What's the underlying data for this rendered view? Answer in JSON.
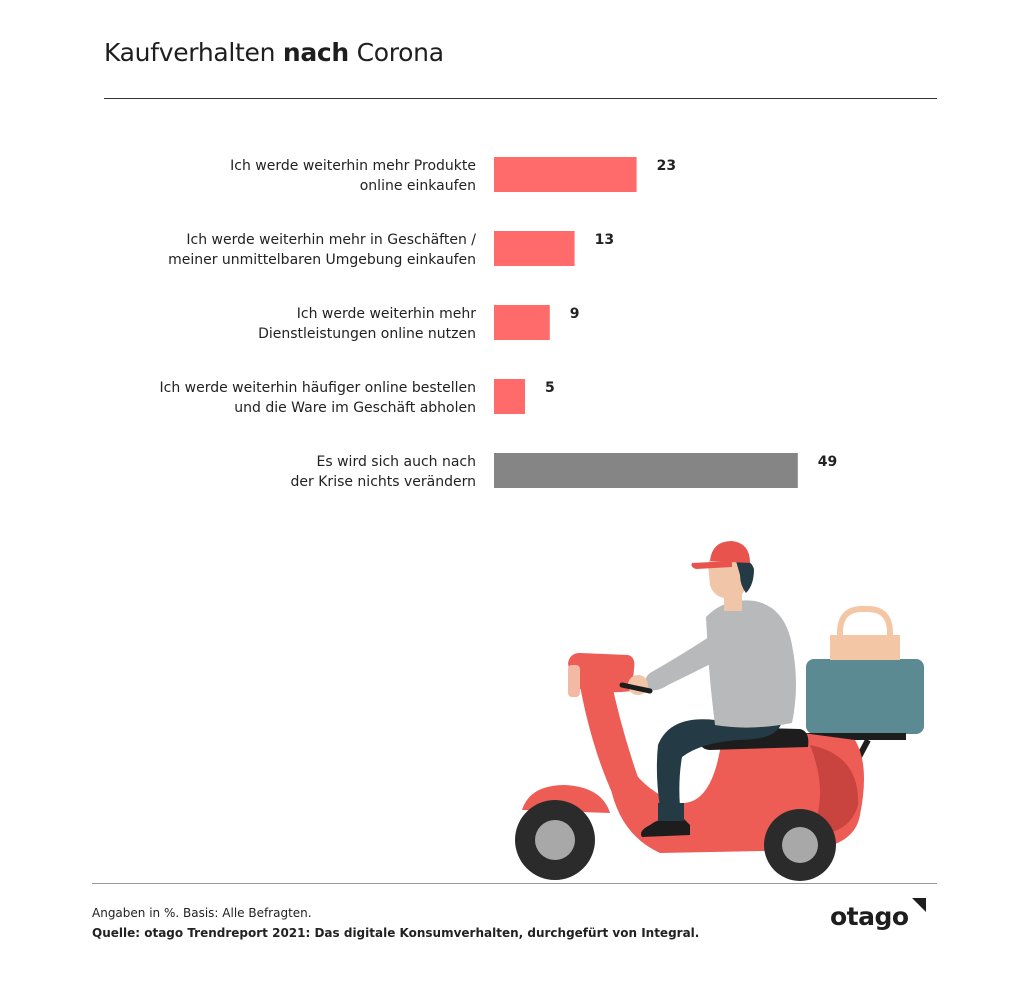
{
  "header": {
    "title_part1": "Kaufverhalten ",
    "title_bold": "nach",
    "title_part2": " Corona"
  },
  "chart_data": {
    "type": "bar",
    "orientation": "horizontal",
    "categories": [
      [
        "Ich werde weiterhin mehr Produkte",
        "online einkaufen"
      ],
      [
        "Ich werde weiterhin mehr in Geschäften /",
        "meiner unmittelbaren Umgebung einkaufen"
      ],
      [
        "Ich werde weiterhin mehr",
        "Dienstleistungen online nutzen"
      ],
      [
        "Ich werde weiterhin häufiger online bestellen",
        "und die Ware im Geschäft abholen"
      ],
      [
        "Es wird sich auch nach",
        "der Krise nichts verändern"
      ]
    ],
    "values": [
      23,
      13,
      9,
      5,
      49
    ],
    "colors": [
      "#ff6b6b",
      "#ff6b6b",
      "#ff6b6b",
      "#ff6b6b",
      "#858585"
    ],
    "xlim": [
      0,
      100
    ],
    "grid": false
  },
  "illustration": {
    "icon": "delivery-scooter-rider-icon",
    "colors": {
      "scooter": "#ee5c56",
      "scooter_shade": "#c9443f",
      "cap": "#e8534d",
      "shirt": "#b8b9bb",
      "pants": "#243a44",
      "skin": "#f0c5a8",
      "box": "#5b8a92",
      "bag": "#f3c6a6",
      "tire": "#2b2b2b",
      "hub": "#a8a8a8"
    }
  },
  "footer": {
    "note": "Angaben in %. Basis: Alle Befragten.",
    "source": "Quelle: otago Trendreport 2021: Das digitale Konsumverhalten, durchgefürt von Integral.",
    "logo": "otago"
  }
}
